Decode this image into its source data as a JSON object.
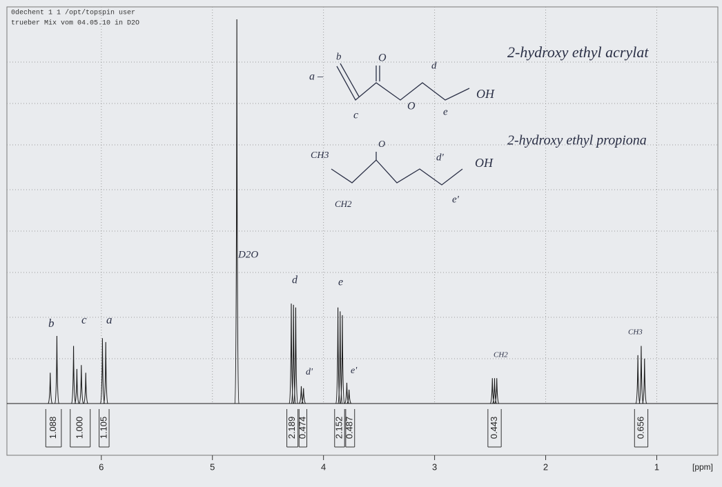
{
  "header": {
    "line1": "0dechent  1  1  /opt/topspin  user",
    "line2": "trueber Mix vom 04.05.10 in D2O"
  },
  "chart_data": {
    "type": "nmr",
    "x_label": "[ppm]",
    "xlim": [
      6.85,
      0.45
    ],
    "xticks": [
      6,
      5,
      4,
      3,
      2,
      1
    ],
    "ylim": [
      0,
      100
    ],
    "grid": true,
    "color": "#1a1a1a",
    "peaks": [
      {
        "ppm": 6.46,
        "height": 8
      },
      {
        "ppm": 6.4,
        "height": 17.6
      },
      {
        "ppm": 6.25,
        "height": 15
      },
      {
        "ppm": 6.22,
        "height": 9
      },
      {
        "ppm": 6.18,
        "height": 10
      },
      {
        "ppm": 6.14,
        "height": 8
      },
      {
        "ppm": 5.99,
        "height": 17
      },
      {
        "ppm": 5.96,
        "height": 16
      },
      {
        "ppm": 4.78,
        "height": 100
      },
      {
        "ppm": 4.29,
        "height": 26
      },
      {
        "ppm": 4.27,
        "height": 25.7
      },
      {
        "ppm": 4.25,
        "height": 25
      },
      {
        "ppm": 4.2,
        "height": 4.5
      },
      {
        "ppm": 4.18,
        "height": 4
      },
      {
        "ppm": 3.87,
        "height": 25
      },
      {
        "ppm": 3.85,
        "height": 24
      },
      {
        "ppm": 3.83,
        "height": 23
      },
      {
        "ppm": 3.79,
        "height": 5.4
      },
      {
        "ppm": 3.77,
        "height": 3.6
      },
      {
        "ppm": 2.48,
        "height": 6.6
      },
      {
        "ppm": 2.46,
        "height": 6.6
      },
      {
        "ppm": 2.44,
        "height": 6.6
      },
      {
        "ppm": 1.17,
        "height": 12.6
      },
      {
        "ppm": 1.14,
        "height": 15
      },
      {
        "ppm": 1.11,
        "height": 11.7
      }
    ],
    "integrals": [
      {
        "value": 1.088,
        "range": [
          6.5,
          6.36
        ]
      },
      {
        "value": 1.0,
        "range": [
          6.28,
          6.1
        ]
      },
      {
        "value": 1.105,
        "range": [
          6.02,
          5.93
        ]
      },
      {
        "value": 2.189,
        "range": [
          4.33,
          4.23
        ]
      },
      {
        "value": 0.474,
        "range": [
          4.22,
          4.15
        ]
      },
      {
        "value": 2.152,
        "range": [
          3.9,
          3.81
        ]
      },
      {
        "value": 0.487,
        "range": [
          3.8,
          3.72
        ]
      },
      {
        "value": 0.443,
        "range": [
          2.52,
          2.4
        ]
      },
      {
        "value": 0.656,
        "range": [
          1.2,
          1.08
        ]
      }
    ],
    "integral_labels": [
      "1.088",
      "1.000",
      "1.105",
      "2.189",
      "0.474",
      "2.152",
      "0.487",
      "0.443",
      "0.656"
    ]
  },
  "annotations": [
    "2-hydroxy ethyl acrylat",
    "2-hydroxy ethyl propiona",
    "b",
    "c",
    "a",
    "D2O",
    "d",
    "d'",
    "e",
    "e'",
    "CH2",
    "CH3",
    "a –",
    "b",
    "O",
    "d",
    "OH",
    "O",
    "e",
    "c",
    "CH3",
    "O",
    "d'",
    "OH",
    "e'",
    "CH2"
  ]
}
